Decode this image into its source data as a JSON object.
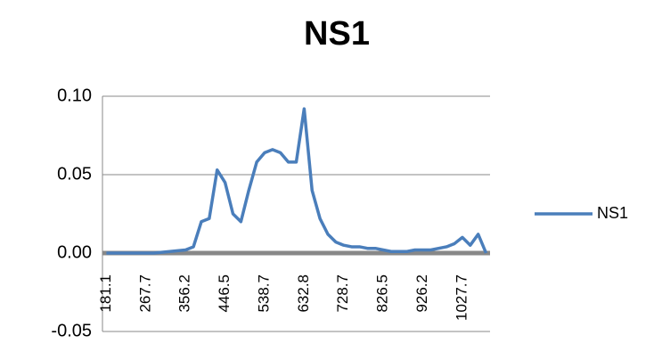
{
  "chart_data": {
    "type": "line",
    "title": "NS1",
    "categories": [
      "181.1",
      null,
      null,
      null,
      null,
      "267.7",
      null,
      null,
      null,
      null,
      "356.2",
      null,
      null,
      null,
      null,
      "446.5",
      null,
      null,
      null,
      null,
      "538.7",
      null,
      null,
      null,
      null,
      "632.8",
      null,
      null,
      null,
      null,
      "728.7",
      null,
      null,
      null,
      null,
      "826.5",
      null,
      null,
      null,
      null,
      "926.2",
      null,
      null,
      null,
      null,
      "1027.7",
      null,
      null,
      null
    ],
    "series": [
      {
        "name": "NS1",
        "color": "#4a7ebb",
        "values": [
          0.0,
          0.0,
          0.0,
          0.0,
          0.0,
          0.0,
          0.0,
          0.0005,
          0.001,
          0.0015,
          0.002,
          0.004,
          0.02,
          0.022,
          0.053,
          0.045,
          0.025,
          0.02,
          0.04,
          0.058,
          0.064,
          0.066,
          0.064,
          0.058,
          0.058,
          0.092,
          0.04,
          0.022,
          0.012,
          0.007,
          0.005,
          0.004,
          0.004,
          0.003,
          0.003,
          0.002,
          0.001,
          0.001,
          0.001,
          0.002,
          0.002,
          0.002,
          0.003,
          0.004,
          0.006,
          0.01,
          0.005,
          0.012,
          0.0
        ]
      }
    ],
    "ylim": [
      -0.05,
      0.1
    ],
    "yticks": [
      {
        "value": -0.05,
        "label": "-0.05"
      },
      {
        "value": 0,
        "label": "0.00"
      },
      {
        "value": 0.05,
        "label": "0.05"
      },
      {
        "value": 0.1,
        "label": "0.10"
      }
    ],
    "grid": true,
    "legend": "right"
  }
}
